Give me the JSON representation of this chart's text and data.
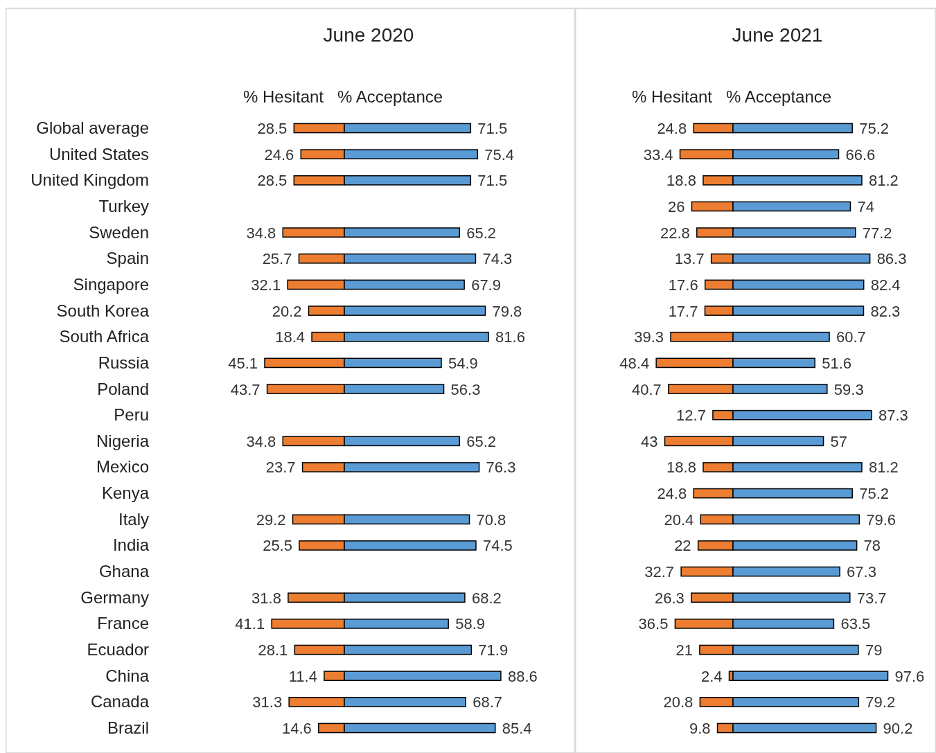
{
  "chart_data": [
    {
      "type": "bar",
      "orientation": "horizontal",
      "categories": [
        "Global average",
        "United States",
        "United Kingdom",
        "Turkey",
        "Sweden",
        "Spain",
        "Singapore",
        "South Korea",
        "South Africa",
        "Russia",
        "Poland",
        "Peru",
        "Nigeria",
        "Mexico",
        "Kenya",
        "Italy",
        "India",
        "Ghana",
        "Germany",
        "France",
        "Ecuador",
        "China",
        "Canada",
        "Brazil"
      ],
      "xlim": [
        45.1,
        0
      ],
      "series": [
        {
          "name": "% Hesitant",
          "color": "#ed7d31",
          "values": [
            28.5,
            24.6,
            28.5,
            null,
            34.8,
            25.7,
            32.1,
            20.2,
            18.4,
            45.1,
            43.7,
            null,
            34.8,
            23.7,
            null,
            29.2,
            25.5,
            null,
            31.8,
            41.1,
            28.1,
            11.4,
            31.3,
            14.6
          ]
        }
      ],
      "data_labels": true,
      "tick_labels": "y"
    },
    {
      "type": "bar",
      "orientation": "horizontal",
      "title": "June 2020",
      "categories": [
        null,
        null,
        null,
        null,
        null,
        null,
        null,
        null,
        null,
        null,
        null,
        null,
        null,
        null,
        null,
        null,
        null,
        null,
        null,
        null,
        null,
        null,
        null,
        null
      ],
      "xlim": [
        0,
        88.6
      ],
      "series": [
        {
          "name": "% Acceptance",
          "color": "#5b9bd5",
          "values": [
            71.5,
            75.4,
            71.5,
            null,
            65.2,
            74.3,
            67.9,
            79.8,
            81.6,
            54.9,
            56.3,
            null,
            65.2,
            76.3,
            null,
            70.8,
            74.5,
            null,
            68.2,
            58.9,
            71.9,
            88.6,
            68.7,
            85.4
          ]
        }
      ],
      "data_labels": true
    },
    {
      "type": "bar",
      "orientation": "horizontal",
      "categories": [
        null,
        null,
        null,
        null,
        null,
        null,
        null,
        null,
        null,
        null,
        null,
        null,
        null,
        null,
        null,
        null,
        null,
        null,
        null,
        null,
        null,
        null,
        null,
        null
      ],
      "xlim": [
        48.4,
        0
      ],
      "series": [
        {
          "name": "% Hesitant",
          "color": "#ed7d31",
          "values": [
            24.8,
            33.4,
            18.8,
            26,
            22.8,
            13.7,
            17.6,
            17.7,
            39.3,
            48.4,
            40.7,
            12.7,
            43,
            18.8,
            24.8,
            20.4,
            22,
            32.7,
            26.3,
            36.5,
            21,
            2.4,
            20.8,
            9.8
          ]
        }
      ],
      "data_labels": true
    },
    {
      "type": "bar",
      "orientation": "horizontal",
      "title": "June 2021",
      "categories": [
        null,
        null,
        null,
        null,
        null,
        null,
        null,
        null,
        null,
        null,
        null,
        null,
        null,
        null,
        null,
        null,
        null,
        null,
        null,
        null,
        null,
        null,
        null,
        null
      ],
      "xlim": [
        0,
        97.6
      ],
      "series": [
        {
          "name": "% Acceptance",
          "color": "#5b9bd5",
          "values": [
            75.2,
            66.6,
            81.2,
            74,
            77.2,
            86.3,
            82.4,
            82.3,
            60.7,
            51.6,
            59.3,
            87.3,
            57,
            81.2,
            75.2,
            79.6,
            78,
            67.3,
            73.7,
            63.5,
            79,
            97.6,
            79.2,
            90.2
          ]
        }
      ],
      "data_labels": true
    }
  ]
}
